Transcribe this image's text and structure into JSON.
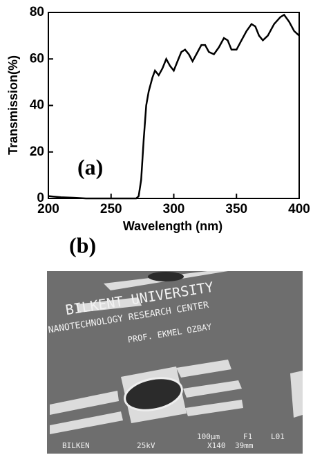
{
  "chart_data": {
    "type": "line",
    "xlabel": "Wavelength (nm)",
    "ylabel": "Transmission(%)",
    "annotation": "(a)",
    "x": [
      200,
      210,
      220,
      230,
      240,
      250,
      260,
      265,
      270,
      272,
      274,
      276,
      278,
      280,
      283,
      285,
      288,
      291,
      294,
      297,
      300,
      303,
      306,
      309,
      312,
      315,
      318,
      322,
      325,
      328,
      332,
      336,
      340,
      343,
      346,
      350,
      354,
      358,
      362,
      365,
      368,
      371,
      375,
      380,
      385,
      388,
      392,
      396,
      400
    ],
    "values": [
      1,
      0.5,
      0.3,
      0,
      0,
      0,
      0,
      0,
      0,
      1,
      8,
      25,
      40,
      46,
      52,
      55,
      53,
      56,
      60,
      57,
      55,
      59,
      63,
      64,
      62,
      59,
      62,
      66,
      66,
      63,
      62,
      65,
      69,
      68,
      64,
      64,
      68,
      72,
      75,
      74,
      70,
      68,
      70,
      75,
      78,
      79,
      76,
      72,
      70
    ],
    "color": "#000000",
    "xlim": [
      200,
      400
    ],
    "xticks": [
      200,
      250,
      300,
      350,
      400
    ],
    "ylim": [
      0,
      80
    ],
    "yticks": [
      0,
      20,
      40,
      60,
      80
    ]
  },
  "panel_b": {
    "label": "(b)",
    "texts": [
      "BILKENT UNIVERSITY",
      "NANOTECHNOLOGY RESEARCH CENTER",
      "PROF. EKMEL OZBAY"
    ],
    "footer": [
      "100μm",
      "F1",
      "L01",
      "BILKEN",
      "25kV",
      "X140",
      "39mm"
    ]
  }
}
